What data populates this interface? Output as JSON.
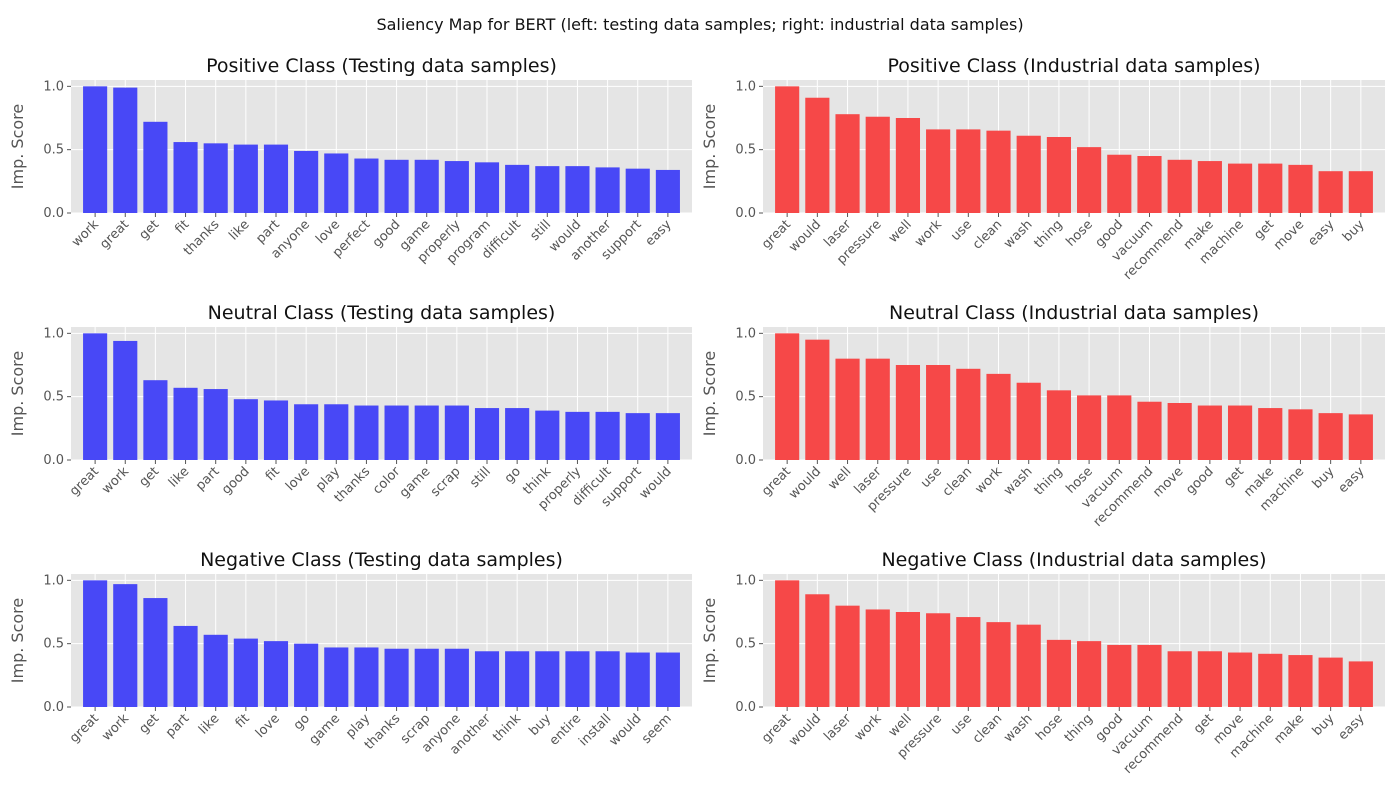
{
  "figure": {
    "suptitle": "Saliency Map for BERT (left: testing data samples; right: industrial data samples)"
  },
  "colors": {
    "testing_bar": "#4444f6",
    "industrial_bar": "#f64444",
    "panel_bg": "#e5e5e5",
    "grid": "#ffffff",
    "tick_text": "#555555",
    "label_text": "#555555",
    "title_text": "#111111"
  },
  "chart_data": [
    {
      "type": "bar",
      "title": "Positive Class (Testing data samples)",
      "xlabel": "",
      "ylabel": "Imp. Score",
      "ylim": [
        0,
        1.05
      ],
      "yticks": [
        0.0,
        0.5,
        1.0
      ],
      "grid": true,
      "series_color": "#4444f6",
      "categories": [
        "work",
        "great",
        "get",
        "fit",
        "thanks",
        "like",
        "part",
        "anyone",
        "love",
        "perfect",
        "good",
        "game",
        "properly",
        "program",
        "difficult",
        "still",
        "would",
        "another",
        "support",
        "easy"
      ],
      "values": [
        1.0,
        0.99,
        0.72,
        0.56,
        0.55,
        0.54,
        0.54,
        0.49,
        0.47,
        0.43,
        0.42,
        0.42,
        0.41,
        0.4,
        0.38,
        0.37,
        0.37,
        0.36,
        0.35,
        0.34
      ]
    },
    {
      "type": "bar",
      "title": "Positive Class (Industrial data samples)",
      "xlabel": "",
      "ylabel": "Imp. Score",
      "ylim": [
        0,
        1.05
      ],
      "yticks": [
        0.0,
        0.5,
        1.0
      ],
      "grid": true,
      "series_color": "#f64444",
      "categories": [
        "great",
        "would",
        "laser",
        "pressure",
        "well",
        "work",
        "use",
        "clean",
        "wash",
        "thing",
        "hose",
        "good",
        "vacuum",
        "recommend",
        "make",
        "machine",
        "get",
        "move",
        "easy",
        "buy"
      ],
      "values": [
        1.0,
        0.91,
        0.78,
        0.76,
        0.75,
        0.66,
        0.66,
        0.65,
        0.61,
        0.6,
        0.52,
        0.46,
        0.45,
        0.42,
        0.41,
        0.39,
        0.39,
        0.38,
        0.33,
        0.33
      ]
    },
    {
      "type": "bar",
      "title": "Neutral Class (Testing data samples)",
      "xlabel": "",
      "ylabel": "Imp. Score",
      "ylim": [
        0,
        1.05
      ],
      "yticks": [
        0.0,
        0.5,
        1.0
      ],
      "grid": true,
      "series_color": "#4444f6",
      "categories": [
        "great",
        "work",
        "get",
        "like",
        "part",
        "good",
        "fit",
        "love",
        "play",
        "thanks",
        "color",
        "game",
        "scrap",
        "still",
        "go",
        "think",
        "properly",
        "difficult",
        "support",
        "would"
      ],
      "values": [
        1.0,
        0.94,
        0.63,
        0.57,
        0.56,
        0.48,
        0.47,
        0.44,
        0.44,
        0.43,
        0.43,
        0.43,
        0.43,
        0.41,
        0.41,
        0.39,
        0.38,
        0.38,
        0.37,
        0.37
      ]
    },
    {
      "type": "bar",
      "title": "Neutral Class (Industrial data samples)",
      "xlabel": "",
      "ylabel": "Imp. Score",
      "ylim": [
        0,
        1.05
      ],
      "yticks": [
        0.0,
        0.5,
        1.0
      ],
      "grid": true,
      "series_color": "#f64444",
      "categories": [
        "great",
        "would",
        "well",
        "laser",
        "pressure",
        "use",
        "clean",
        "work",
        "wash",
        "thing",
        "hose",
        "vacuum",
        "recommend",
        "move",
        "good",
        "get",
        "make",
        "machine",
        "buy",
        "easy"
      ],
      "values": [
        1.0,
        0.95,
        0.8,
        0.8,
        0.75,
        0.75,
        0.72,
        0.68,
        0.61,
        0.55,
        0.51,
        0.51,
        0.46,
        0.45,
        0.43,
        0.43,
        0.41,
        0.4,
        0.37,
        0.36
      ]
    },
    {
      "type": "bar",
      "title": "Negative Class (Testing data samples)",
      "xlabel": "",
      "ylabel": "Imp. Score",
      "ylim": [
        0,
        1.05
      ],
      "yticks": [
        0.0,
        0.5,
        1.0
      ],
      "grid": true,
      "series_color": "#4444f6",
      "categories": [
        "great",
        "work",
        "get",
        "part",
        "like",
        "fit",
        "love",
        "go",
        "game",
        "play",
        "thanks",
        "scrap",
        "anyone",
        "another",
        "think",
        "buy",
        "entire",
        "install",
        "would",
        "seem"
      ],
      "values": [
        1.0,
        0.97,
        0.86,
        0.64,
        0.57,
        0.54,
        0.52,
        0.5,
        0.47,
        0.47,
        0.46,
        0.46,
        0.46,
        0.44,
        0.44,
        0.44,
        0.44,
        0.44,
        0.43,
        0.43
      ]
    },
    {
      "type": "bar",
      "title": "Negative Class (Industrial data samples)",
      "xlabel": "",
      "ylabel": "Imp. Score",
      "ylim": [
        0,
        1.05
      ],
      "yticks": [
        0.0,
        0.5,
        1.0
      ],
      "grid": true,
      "series_color": "#f64444",
      "categories": [
        "great",
        "would",
        "laser",
        "work",
        "well",
        "pressure",
        "use",
        "clean",
        "wash",
        "hose",
        "thing",
        "good",
        "vacuum",
        "recommend",
        "get",
        "move",
        "machine",
        "make",
        "buy",
        "easy"
      ],
      "values": [
        1.0,
        0.89,
        0.8,
        0.77,
        0.75,
        0.74,
        0.71,
        0.67,
        0.65,
        0.53,
        0.52,
        0.49,
        0.49,
        0.44,
        0.44,
        0.43,
        0.42,
        0.41,
        0.39,
        0.36
      ]
    }
  ]
}
